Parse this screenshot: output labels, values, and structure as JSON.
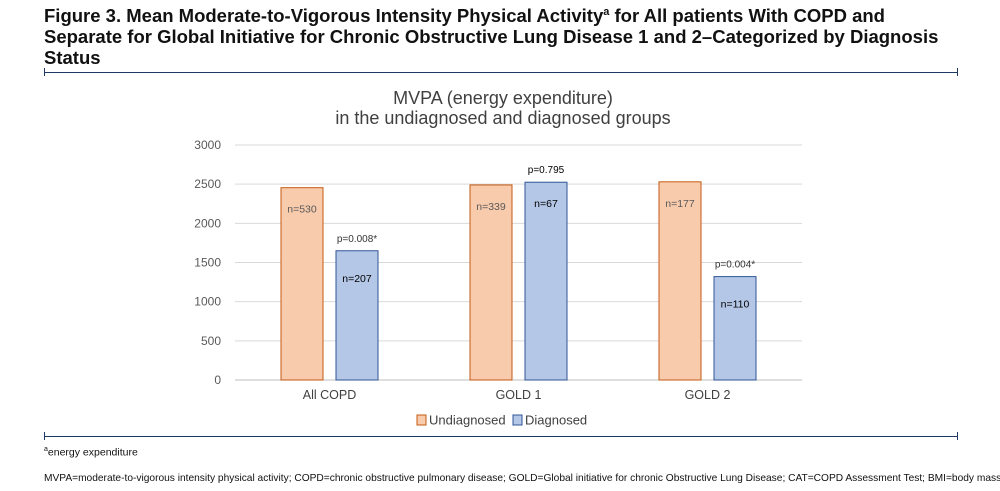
{
  "figure": {
    "title_main": "Figure 3. Mean Moderate-to-Vigorous Intensity Physical Activity",
    "title_sup": "a",
    "title_rest": " for All patients With COPD and Separate for Global Initiative for Chronic Obstructive Lung Disease 1 and 2–Categorized by Diagnosis Status",
    "footnote_sup": "a",
    "footnote_text": "energy expenditure",
    "abbreviations": "MVPA=moderate-to-vigorous intensity physical activity; COPD=chronic obstructive pulmonary disease; GOLD=Global initiative for chronic Obstructive Lung Disease; CAT=COPD Assessment Test; BMI=body mass index",
    "rule_color": "#1f3864"
  },
  "chart_data": {
    "type": "bar",
    "title_line1": "MVPA (energy expenditure)",
    "title_line2": "in the undiagnosed and diagnosed groups",
    "categories": [
      "All COPD",
      "GOLD 1",
      "GOLD 2"
    ],
    "ylim": [
      0,
      3000
    ],
    "yticks": [
      0,
      500,
      1000,
      1500,
      2000,
      2500,
      3000
    ],
    "grid": true,
    "legend_position": "bottom",
    "series": [
      {
        "name": "Undiagnosed",
        "values": [
          2455,
          2490,
          2530
        ],
        "color": "#f8cbad",
        "stroke": "#c55a11",
        "n_labels": [
          "n=530",
          "n=339",
          "n=177"
        ]
      },
      {
        "name": "Diagnosed",
        "values": [
          1650,
          2525,
          1320
        ],
        "color": "#b4c7e7",
        "stroke": "#2f5597",
        "n_labels": [
          "n=207",
          "n=67",
          "n=110"
        ],
        "p_labels": [
          "p=0.008*",
          "p=0.795",
          "p=0.004*"
        ]
      }
    ]
  }
}
